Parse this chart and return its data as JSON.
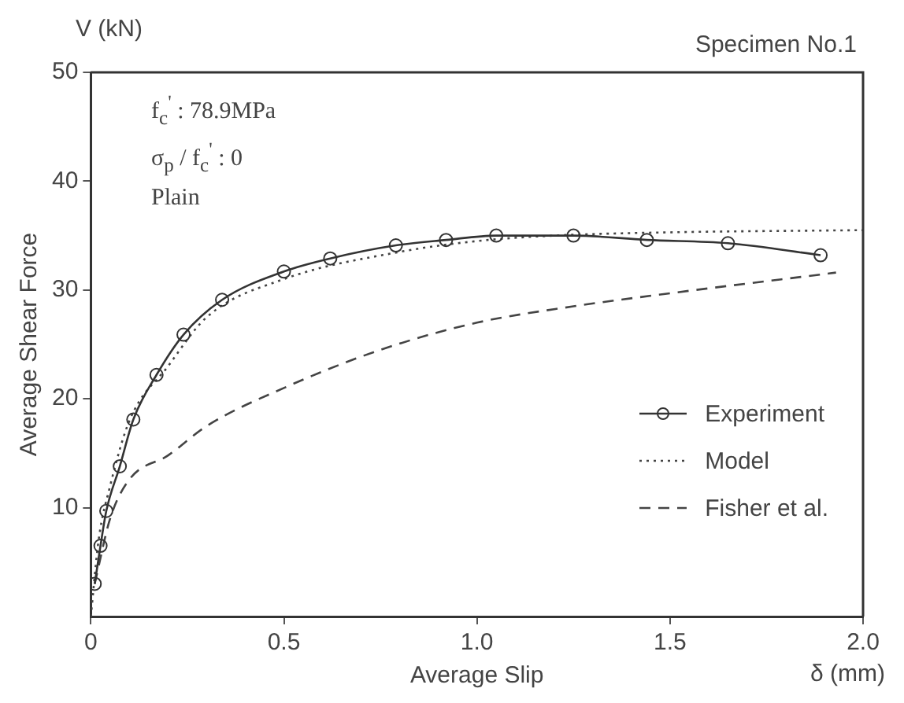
{
  "chart_data": {
    "type": "line",
    "xlabel": "Average Slip",
    "ylabel": "Average Shear Force",
    "annotations": [
      "V (kN)",
      "δ (mm)",
      "Specimen No.1",
      "f$_{c}$$^{'}$ : 78.9MPa",
      "σ$_{p}$ / f$_{c}$$^{'}$ : 0",
      "Plain"
    ],
    "xlim": [
      0,
      2.0
    ],
    "xticks": [
      0,
      0.5,
      {
        "value": 1,
        "label": "1.0"
      },
      1.5,
      {
        "value": 2,
        "label": "2.0"
      }
    ],
    "ylim": [
      0,
      50
    ],
    "yticks": [
      10,
      20,
      30,
      40,
      50
    ],
    "grid": false,
    "legend": "bottom right",
    "series": [
      {
        "name": "Experiment",
        "color": "#333333",
        "marker": "circle",
        "line_style": "solid",
        "x": [
          0.01,
          0.025,
          0.04,
          0.075,
          0.11,
          0.17,
          0.24,
          0.34,
          0.5,
          0.62,
          0.79,
          0.92,
          1.05,
          1.25,
          1.44,
          1.65,
          1.89
        ],
        "values": [
          3,
          6.5,
          9.7,
          13.8,
          18.1,
          22.2,
          25.9,
          29.1,
          31.7,
          32.9,
          34.1,
          34.6,
          35,
          35,
          34.6,
          34.3,
          33.2
        ]
      },
      {
        "name": "Model",
        "color": "#444444",
        "marker": "none",
        "line_style": "dotted",
        "x": [
          0,
          0.02,
          0.05,
          0.1,
          0.2,
          0.3,
          0.5,
          0.8,
          1.0,
          1.2,
          1.5,
          2.0
        ],
        "values": [
          0,
          7,
          12,
          18,
          23,
          27.5,
          31,
          33.5,
          34.5,
          35,
          35.3,
          35.5
        ]
      },
      {
        "name": "Fisher et al.",
        "color": "#444444",
        "marker": "none",
        "line_style": "dashed",
        "x": [
          0.01,
          0.05,
          0.1,
          0.2,
          0.3,
          0.5,
          0.75,
          1.0,
          1.25,
          1.5,
          1.93
        ],
        "values": [
          3,
          9,
          12.6,
          14.8,
          17.5,
          21,
          24.5,
          27,
          28.5,
          29.7,
          31.6
        ]
      }
    ]
  }
}
